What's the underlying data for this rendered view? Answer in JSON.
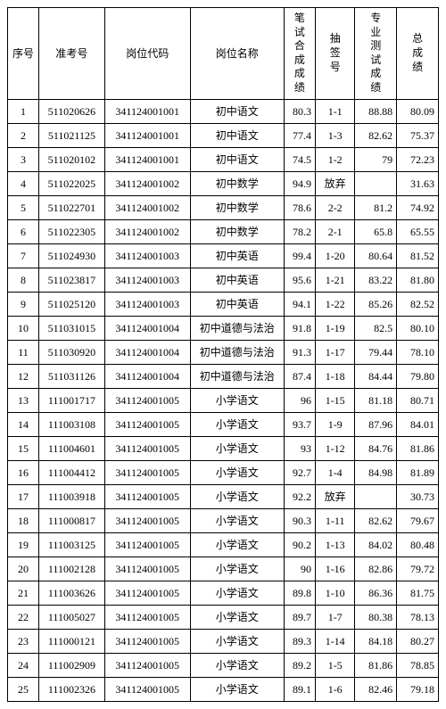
{
  "headers": {
    "seq": "序号",
    "examNo": "准考号",
    "jobCode": "岗位代码",
    "jobName": "岗位名称",
    "written": "笔试合成成绩",
    "draw": "抽签号",
    "prof": "专业测试成绩",
    "total": "总成绩"
  },
  "rows": [
    {
      "seq": "1",
      "examNo": "511020626",
      "jobCode": "341124001001",
      "jobName": "初中语文",
      "written": "80.3",
      "draw": "1-1",
      "prof": "88.88",
      "total": "80.09"
    },
    {
      "seq": "2",
      "examNo": "511021125",
      "jobCode": "341124001001",
      "jobName": "初中语文",
      "written": "77.4",
      "draw": "1-3",
      "prof": "82.62",
      "total": "75.37"
    },
    {
      "seq": "3",
      "examNo": "511020102",
      "jobCode": "341124001001",
      "jobName": "初中语文",
      "written": "74.5",
      "draw": "1-2",
      "prof": "79",
      "total": "72.23"
    },
    {
      "seq": "4",
      "examNo": "511022025",
      "jobCode": "341124001002",
      "jobName": "初中数学",
      "written": "94.9",
      "draw": "放弃",
      "prof": "",
      "total": "31.63"
    },
    {
      "seq": "5",
      "examNo": "511022701",
      "jobCode": "341124001002",
      "jobName": "初中数学",
      "written": "78.6",
      "draw": "2-2",
      "prof": "81.2",
      "total": "74.92"
    },
    {
      "seq": "6",
      "examNo": "511022305",
      "jobCode": "341124001002",
      "jobName": "初中数学",
      "written": "78.2",
      "draw": "2-1",
      "prof": "65.8",
      "total": "65.55"
    },
    {
      "seq": "7",
      "examNo": "511024930",
      "jobCode": "341124001003",
      "jobName": "初中英语",
      "written": "99.4",
      "draw": "1-20",
      "prof": "80.64",
      "total": "81.52"
    },
    {
      "seq": "8",
      "examNo": "511023817",
      "jobCode": "341124001003",
      "jobName": "初中英语",
      "written": "95.6",
      "draw": "1-21",
      "prof": "83.22",
      "total": "81.80"
    },
    {
      "seq": "9",
      "examNo": "511025120",
      "jobCode": "341124001003",
      "jobName": "初中英语",
      "written": "94.1",
      "draw": "1-22",
      "prof": "85.26",
      "total": "82.52"
    },
    {
      "seq": "10",
      "examNo": "511031015",
      "jobCode": "341124001004",
      "jobName": "初中道德与法治",
      "written": "91.8",
      "draw": "1-19",
      "prof": "82.5",
      "total": "80.10"
    },
    {
      "seq": "11",
      "examNo": "511030920",
      "jobCode": "341124001004",
      "jobName": "初中道德与法治",
      "written": "91.3",
      "draw": "1-17",
      "prof": "79.44",
      "total": "78.10"
    },
    {
      "seq": "12",
      "examNo": "511031126",
      "jobCode": "341124001004",
      "jobName": "初中道德与法治",
      "written": "87.4",
      "draw": "1-18",
      "prof": "84.44",
      "total": "79.80"
    },
    {
      "seq": "13",
      "examNo": "111001717",
      "jobCode": "341124001005",
      "jobName": "小学语文",
      "written": "96",
      "draw": "1-15",
      "prof": "81.18",
      "total": "80.71"
    },
    {
      "seq": "14",
      "examNo": "111003108",
      "jobCode": "341124001005",
      "jobName": "小学语文",
      "written": "93.7",
      "draw": "1-9",
      "prof": "87.96",
      "total": "84.01"
    },
    {
      "seq": "15",
      "examNo": "111004601",
      "jobCode": "341124001005",
      "jobName": "小学语文",
      "written": "93",
      "draw": "1-12",
      "prof": "84.76",
      "total": "81.86"
    },
    {
      "seq": "16",
      "examNo": "111004412",
      "jobCode": "341124001005",
      "jobName": "小学语文",
      "written": "92.7",
      "draw": "1-4",
      "prof": "84.98",
      "total": "81.89"
    },
    {
      "seq": "17",
      "examNo": "111003918",
      "jobCode": "341124001005",
      "jobName": "小学语文",
      "written": "92.2",
      "draw": "放弃",
      "prof": "",
      "total": "30.73"
    },
    {
      "seq": "18",
      "examNo": "111000817",
      "jobCode": "341124001005",
      "jobName": "小学语文",
      "written": "90.3",
      "draw": "1-11",
      "prof": "82.62",
      "total": "79.67"
    },
    {
      "seq": "19",
      "examNo": "111003125",
      "jobCode": "341124001005",
      "jobName": "小学语文",
      "written": "90.2",
      "draw": "1-13",
      "prof": "84.02",
      "total": "80.48"
    },
    {
      "seq": "20",
      "examNo": "111002128",
      "jobCode": "341124001005",
      "jobName": "小学语文",
      "written": "90",
      "draw": "1-16",
      "prof": "82.86",
      "total": "79.72"
    },
    {
      "seq": "21",
      "examNo": "111003626",
      "jobCode": "341124001005",
      "jobName": "小学语文",
      "written": "89.8",
      "draw": "1-10",
      "prof": "86.36",
      "total": "81.75"
    },
    {
      "seq": "22",
      "examNo": "111005027",
      "jobCode": "341124001005",
      "jobName": "小学语文",
      "written": "89.7",
      "draw": "1-7",
      "prof": "80.38",
      "total": "78.13"
    },
    {
      "seq": "23",
      "examNo": "111000121",
      "jobCode": "341124001005",
      "jobName": "小学语文",
      "written": "89.3",
      "draw": "1-14",
      "prof": "84.18",
      "total": "80.27"
    },
    {
      "seq": "24",
      "examNo": "111002909",
      "jobCode": "341124001005",
      "jobName": "小学语文",
      "written": "89.2",
      "draw": "1-5",
      "prof": "81.86",
      "total": "78.85"
    },
    {
      "seq": "25",
      "examNo": "111002326",
      "jobCode": "341124001005",
      "jobName": "小学语文",
      "written": "89.1",
      "draw": "1-6",
      "prof": "82.46",
      "total": "79.18"
    }
  ]
}
